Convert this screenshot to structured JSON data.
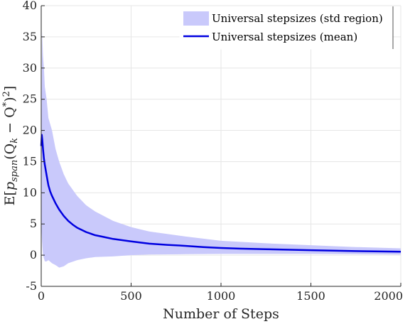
{
  "chart_data": {
    "type": "area",
    "xlabel": "Number of Steps",
    "ylabel": "E[p_span(Q_k − Q*)²]",
    "ylabel_parts": {
      "e": "E",
      "lb": "[",
      "p": "p",
      "span": "span",
      "q_open": "(Q",
      "k": "k",
      "minus": " − Q",
      "star": "*",
      "close": ")",
      "sq": "2",
      "rb": "]"
    },
    "xlim": [
      0,
      2000
    ],
    "ylim": [
      -5,
      40
    ],
    "x_ticks": [
      0,
      500,
      1000,
      1500,
      2000
    ],
    "y_ticks": [
      -5,
      0,
      5,
      10,
      15,
      20,
      25,
      30,
      35,
      40
    ],
    "grid": true,
    "legend_position": "top-right",
    "colors": {
      "band": "#c9c9fb",
      "mean": "#0000e0"
    },
    "series": [
      {
        "name": "Universal stepsizes (std region)",
        "kind": "band",
        "x": [
          0,
          5,
          10,
          15,
          20,
          30,
          40,
          60,
          80,
          100,
          125,
          150,
          200,
          250,
          300,
          400,
          500,
          600,
          800,
          1000,
          1250,
          1500,
          1750,
          2000
        ],
        "upper": [
          12,
          36,
          32,
          30,
          27,
          25,
          22,
          20,
          17,
          15,
          13,
          11.5,
          9.5,
          8,
          7,
          5.5,
          4.5,
          3.8,
          3,
          2.3,
          1.9,
          1.6,
          1.3,
          1.1
        ],
        "lower": [
          5,
          2,
          0,
          -0.5,
          -1,
          -1,
          -0.8,
          -1.3,
          -1.6,
          -2,
          -1.8,
          -1.3,
          -0.8,
          -0.5,
          -0.3,
          -0.2,
          0,
          0.1,
          0.15,
          0.2,
          0.2,
          0.2,
          0.15,
          0.1
        ]
      },
      {
        "name": "Universal stepsizes (mean)",
        "kind": "line",
        "x": [
          0,
          3,
          6,
          10,
          15,
          20,
          30,
          40,
          50,
          60,
          80,
          100,
          125,
          150,
          175,
          200,
          250,
          300,
          350,
          400,
          500,
          600,
          700,
          800,
          900,
          1000,
          1100,
          1250,
          1500,
          1750,
          2000
        ],
        "values": [
          17.5,
          19.3,
          18.5,
          17,
          15.5,
          14.5,
          12.8,
          11.2,
          10.2,
          9.5,
          8.3,
          7.3,
          6.3,
          5.5,
          4.9,
          4.4,
          3.7,
          3.2,
          2.9,
          2.6,
          2.2,
          1.85,
          1.65,
          1.5,
          1.3,
          1.15,
          1.05,
          0.95,
          0.8,
          0.65,
          0.55
        ]
      }
    ]
  }
}
